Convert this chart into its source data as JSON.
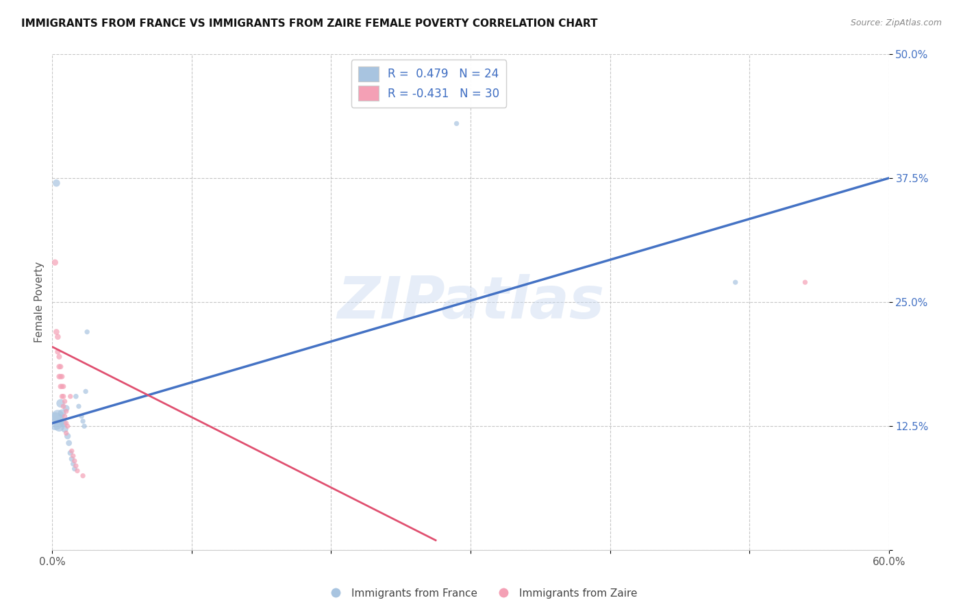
{
  "title": "IMMIGRANTS FROM FRANCE VS IMMIGRANTS FROM ZAIRE FEMALE POVERTY CORRELATION CHART",
  "source": "Source: ZipAtlas.com",
  "ylabel": "Female Poverty",
  "xlim": [
    0.0,
    0.6
  ],
  "ylim": [
    0.0,
    0.5
  ],
  "xticks": [
    0.0,
    0.1,
    0.2,
    0.3,
    0.4,
    0.5,
    0.6
  ],
  "xticklabels": [
    "0.0%",
    "",
    "",
    "",
    "",
    "",
    "60.0%"
  ],
  "yticks": [
    0.0,
    0.125,
    0.25,
    0.375,
    0.5
  ],
  "yticklabels": [
    "",
    "12.5%",
    "25.0%",
    "37.5%",
    "50.0%"
  ],
  "legend1_label": "R =  0.479   N = 24",
  "legend2_label": "R = -0.431   N = 30",
  "legend_bottom_label1": "Immigrants from France",
  "legend_bottom_label2": "Immigrants from Zaire",
  "france_color": "#a8c4e0",
  "zaire_color": "#f4a0b5",
  "france_line_color": "#4472C4",
  "zaire_line_color": "#E05070",
  "background_color": "#ffffff",
  "watermark": "ZIPatlas",
  "france_points": [
    [
      0.002,
      0.13
    ],
    [
      0.003,
      0.37
    ],
    [
      0.004,
      0.135
    ],
    [
      0.005,
      0.125
    ],
    [
      0.006,
      0.148
    ],
    [
      0.007,
      0.138
    ],
    [
      0.008,
      0.128
    ],
    [
      0.009,
      0.122
    ],
    [
      0.01,
      0.143
    ],
    [
      0.011,
      0.115
    ],
    [
      0.012,
      0.108
    ],
    [
      0.013,
      0.098
    ],
    [
      0.014,
      0.092
    ],
    [
      0.015,
      0.087
    ],
    [
      0.016,
      0.082
    ],
    [
      0.017,
      0.155
    ],
    [
      0.019,
      0.145
    ],
    [
      0.021,
      0.135
    ],
    [
      0.022,
      0.13
    ],
    [
      0.023,
      0.125
    ],
    [
      0.024,
      0.16
    ],
    [
      0.025,
      0.22
    ],
    [
      0.29,
      0.43
    ],
    [
      0.49,
      0.27
    ]
  ],
  "france_sizes": [
    350,
    60,
    180,
    130,
    80,
    70,
    60,
    55,
    50,
    45,
    40,
    35,
    35,
    30,
    30,
    30,
    28,
    28,
    28,
    28,
    28,
    28,
    28,
    28
  ],
  "zaire_points": [
    [
      0.002,
      0.29
    ],
    [
      0.003,
      0.22
    ],
    [
      0.004,
      0.215
    ],
    [
      0.004,
      0.2
    ],
    [
      0.005,
      0.195
    ],
    [
      0.005,
      0.185
    ],
    [
      0.005,
      0.175
    ],
    [
      0.006,
      0.185
    ],
    [
      0.006,
      0.175
    ],
    [
      0.006,
      0.165
    ],
    [
      0.007,
      0.175
    ],
    [
      0.007,
      0.165
    ],
    [
      0.007,
      0.155
    ],
    [
      0.008,
      0.165
    ],
    [
      0.008,
      0.155
    ],
    [
      0.008,
      0.145
    ],
    [
      0.009,
      0.15
    ],
    [
      0.009,
      0.135
    ],
    [
      0.01,
      0.14
    ],
    [
      0.01,
      0.128
    ],
    [
      0.01,
      0.118
    ],
    [
      0.011,
      0.125
    ],
    [
      0.013,
      0.155
    ],
    [
      0.014,
      0.1
    ],
    [
      0.015,
      0.095
    ],
    [
      0.016,
      0.09
    ],
    [
      0.017,
      0.085
    ],
    [
      0.018,
      0.08
    ],
    [
      0.022,
      0.075
    ],
    [
      0.54,
      0.27
    ]
  ],
  "zaire_sizes": [
    45,
    40,
    38,
    36,
    34,
    34,
    34,
    32,
    32,
    32,
    32,
    30,
    30,
    30,
    30,
    30,
    28,
    28,
    28,
    28,
    28,
    28,
    28,
    28,
    28,
    28,
    28,
    28,
    28,
    28
  ],
  "france_line": {
    "x0": 0.0,
    "y0": 0.128,
    "x1": 0.6,
    "y1": 0.375
  },
  "zaire_line": {
    "x0": 0.0,
    "y0": 0.205,
    "x1": 0.275,
    "y1": 0.01
  }
}
